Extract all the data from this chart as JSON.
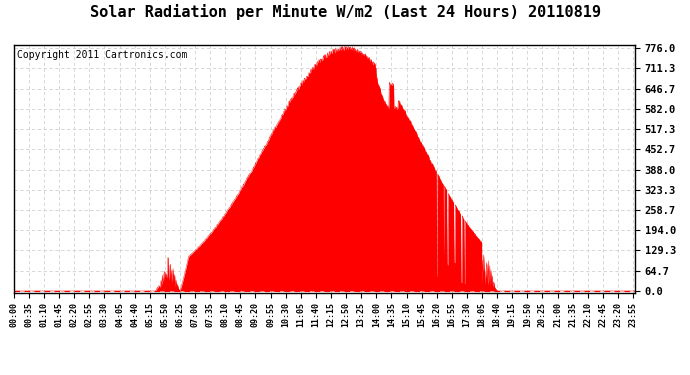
{
  "title": "Solar Radiation per Minute W/m2 (Last 24 Hours) 20110819",
  "copyright": "Copyright 2011 Cartronics.com",
  "yticks": [
    0.0,
    64.7,
    129.3,
    194.0,
    258.7,
    323.3,
    388.0,
    452.7,
    517.3,
    582.0,
    646.7,
    711.3,
    776.0
  ],
  "ymax": 776.0,
  "ymin": 0.0,
  "fill_color": "#FF0000",
  "line_color": "#FF0000",
  "bg_color": "#FFFFFF",
  "plot_bg_color": "#FFFFFF",
  "grid_color": "#CCCCCC",
  "dashed_line_color": "#FF0000",
  "title_fontsize": 11,
  "copyright_fontsize": 7,
  "xtick_labels": [
    "00:00",
    "00:35",
    "01:10",
    "01:45",
    "02:20",
    "02:55",
    "03:30",
    "04:05",
    "04:40",
    "05:15",
    "05:50",
    "06:25",
    "07:00",
    "07:35",
    "08:10",
    "08:45",
    "09:20",
    "09:55",
    "10:30",
    "11:05",
    "11:40",
    "12:15",
    "12:50",
    "13:25",
    "14:00",
    "14:35",
    "15:10",
    "15:45",
    "16:20",
    "16:55",
    "17:30",
    "18:05",
    "18:40",
    "19:15",
    "19:50",
    "20:25",
    "21:00",
    "21:35",
    "22:10",
    "22:45",
    "23:20",
    "23:55"
  ]
}
